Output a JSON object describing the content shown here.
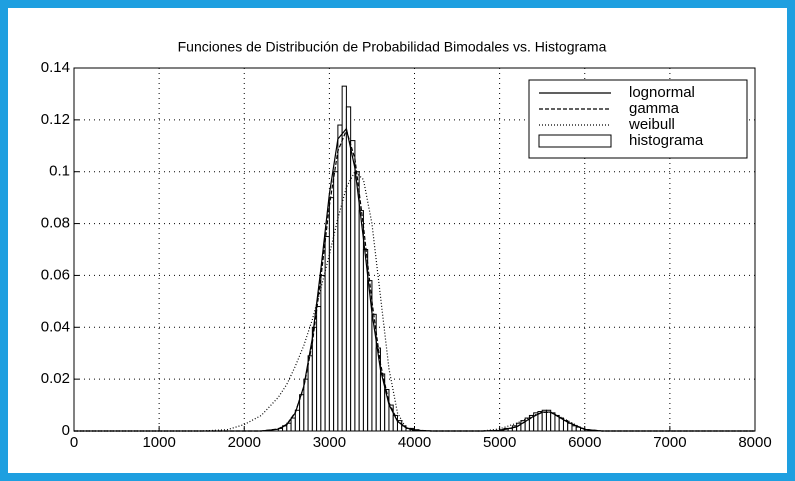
{
  "chart_data": {
    "type": "histogram",
    "title": "Funciones de Distribución de Probabilidad Bimodales vs. Histograma",
    "xlim": [
      0,
      8000
    ],
    "ylim": [
      0,
      0.14
    ],
    "xticks": [
      0,
      1000,
      2000,
      3000,
      4000,
      5000,
      6000,
      7000,
      8000
    ],
    "yticks": [
      0,
      0.02,
      0.04,
      0.06,
      0.08,
      0.1,
      0.12,
      0.14
    ],
    "grid": true,
    "legend": "upper right",
    "histogram": {
      "name": "histograma",
      "color": "#ffffff",
      "bins": [
        2400,
        2450,
        2500,
        2550,
        2600,
        2650,
        2700,
        2750,
        2800,
        2850,
        2900,
        2950,
        3000,
        3050,
        3100,
        3150,
        3200,
        3250,
        3300,
        3350,
        3400,
        3450,
        3500,
        3550,
        3600,
        3650,
        3700,
        3750,
        3800,
        3850,
        3900,
        3950,
        4000,
        4050,
        4100,
        4150,
        4200,
        4250,
        4300,
        4350,
        4400,
        4450,
        4500,
        4550,
        4600,
        4650,
        4700,
        4750,
        4800,
        4850,
        4900,
        4950,
        5000,
        5050,
        5100,
        5150,
        5200,
        5250,
        5300,
        5350,
        5400,
        5450,
        5500,
        5550,
        5600,
        5650,
        5700,
        5750,
        5800,
        5850,
        5900,
        5950,
        6000,
        6050
      ],
      "counts": [
        0.001,
        0.002,
        0.003,
        0.005,
        0.008,
        0.014,
        0.02,
        0.029,
        0.04,
        0.048,
        0.06,
        0.075,
        0.09,
        0.1,
        0.118,
        0.133,
        0.125,
        0.112,
        0.1,
        0.085,
        0.07,
        0.058,
        0.045,
        0.032,
        0.022,
        0.016,
        0.01,
        0.006,
        0.004,
        0.002,
        0.001,
        0.001,
        0.0005,
        0,
        0,
        0,
        0,
        0,
        0,
        0,
        0,
        0,
        0,
        0,
        0,
        0,
        0,
        0,
        0,
        0,
        0,
        0,
        0.0005,
        0.001,
        0.001,
        0.002,
        0.003,
        0.004,
        0.005,
        0.006,
        0.007,
        0.0075,
        0.008,
        0.008,
        0.007,
        0.006,
        0.005,
        0.004,
        0.003,
        0.002,
        0.0015,
        0.001,
        0.0005
      ]
    },
    "x": [
      0,
      1000,
      1500,
      1800,
      2000,
      2200,
      2400,
      2500,
      2600,
      2700,
      2800,
      2900,
      3000,
      3100,
      3200,
      3300,
      3400,
      3500,
      3600,
      3700,
      3800,
      3900,
      4000,
      4200,
      4500,
      4800,
      5000,
      5200,
      5400,
      5500,
      5600,
      5800,
      6000,
      6200,
      6500,
      7000,
      8000
    ],
    "series": [
      {
        "name": "lognormal",
        "color": "#000000",
        "dash": "none",
        "values": [
          0,
          0,
          0,
          0,
          0,
          0,
          0.0007,
          0.0024,
          0.007,
          0.0173,
          0.0358,
          0.0624,
          0.0914,
          0.1126,
          0.1166,
          0.1014,
          0.0742,
          0.0457,
          0.0237,
          0.0102,
          0.0037,
          0.0012,
          0.0003,
          0,
          0,
          0,
          0.0002,
          0.0016,
          0.0057,
          0.0073,
          0.0073,
          0.0034,
          0.0006,
          0,
          0,
          0,
          0
        ]
      },
      {
        "name": "gamma",
        "color": "#000000",
        "dash": "4,2",
        "values": [
          0,
          0,
          0,
          0,
          0,
          0,
          0.0008,
          0.0026,
          0.0072,
          0.017,
          0.034,
          0.059,
          0.087,
          0.108,
          0.116,
          0.105,
          0.079,
          0.05,
          0.026,
          0.011,
          0.004,
          0.0013,
          0.0004,
          0,
          0,
          0,
          0.0002,
          0.0016,
          0.0056,
          0.0072,
          0.0072,
          0.0035,
          0.0006,
          0,
          0,
          0,
          0
        ]
      },
      {
        "name": "weibull",
        "color": "#000000",
        "dash": "1,2",
        "values": [
          0,
          0,
          0,
          0.0005,
          0.0025,
          0.006,
          0.013,
          0.018,
          0.025,
          0.033,
          0.043,
          0.055,
          0.068,
          0.082,
          0.094,
          0.1,
          0.097,
          0.08,
          0.052,
          0.024,
          0.007,
          0.0012,
          0.0001,
          0,
          0,
          0,
          0.0008,
          0.003,
          0.006,
          0.0072,
          0.0072,
          0.004,
          0.0005,
          0,
          0,
          0,
          0
        ]
      }
    ]
  }
}
